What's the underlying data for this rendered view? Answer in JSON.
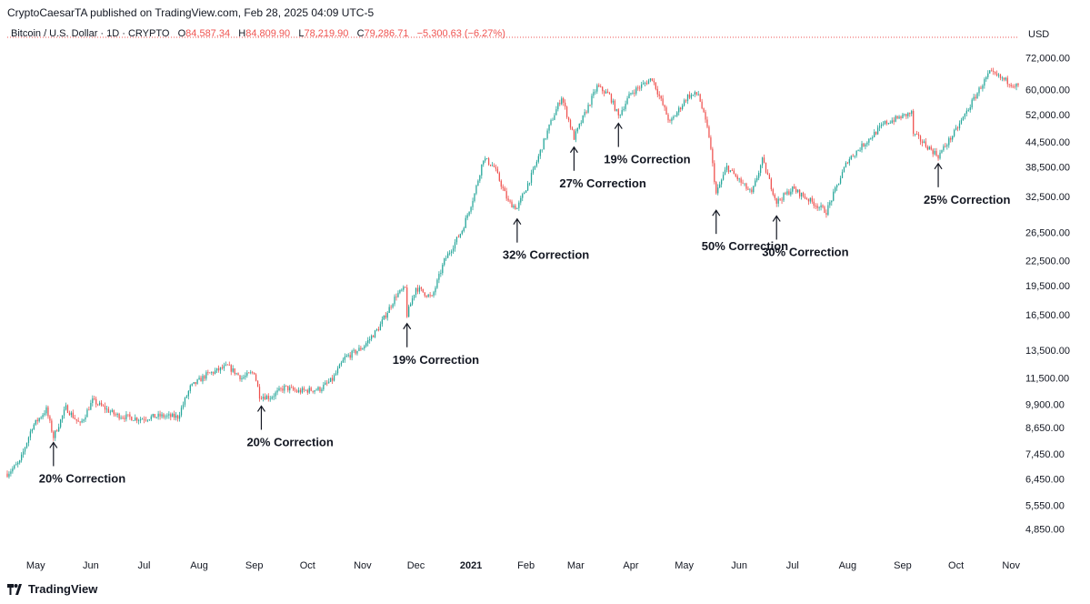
{
  "header": {
    "published": "CryptoCaesarTA published on TradingView.com, Feb 28, 2025 04:09 UTC-5"
  },
  "legend": {
    "symbol": "Bitcoin / U.S. Dollar · 1D · CRYPTO",
    "o_label": "O",
    "o_value": "84,587.34",
    "h_label": "H",
    "h_value": "84,809.90",
    "l_label": "L",
    "l_value": "78,219.90",
    "c_label": "C",
    "c_value": "79,286.71",
    "change": "−5,300.63 (−6.27%)"
  },
  "currency": "USD",
  "footer": {
    "brand": "TradingView"
  },
  "colors": {
    "up": "#26a69a",
    "down": "#ef5350",
    "axis_text": "#131722",
    "last_price_line": "#ef5350"
  },
  "chart_data": {
    "type": "candlestick",
    "y_scale": "log",
    "ylim": [
      4400,
      78000
    ],
    "y_ticks": [
      "72,000.00",
      "60,000.00",
      "52,000.00",
      "44,500.00",
      "38,500.00",
      "32,500.00",
      "26,500.00",
      "22,500.00",
      "19,500.00",
      "16,500.00",
      "13,500.00",
      "11,500.00",
      "9,900.00",
      "8,650.00",
      "7,450.00",
      "6,450.00",
      "5,550.00",
      "4,850.00"
    ],
    "x_ticks": [
      {
        "label": "May",
        "date": "2020-05-01",
        "bold": false
      },
      {
        "label": "Jun",
        "date": "2020-06-01",
        "bold": false
      },
      {
        "label": "Jul",
        "date": "2020-07-01",
        "bold": false
      },
      {
        "label": "Aug",
        "date": "2020-08-01",
        "bold": false
      },
      {
        "label": "Sep",
        "date": "2020-09-01",
        "bold": false
      },
      {
        "label": "Oct",
        "date": "2020-10-01",
        "bold": false
      },
      {
        "label": "Nov",
        "date": "2020-11-01",
        "bold": false
      },
      {
        "label": "Dec",
        "date": "2020-12-01",
        "bold": false
      },
      {
        "label": "2021",
        "date": "2021-01-01",
        "bold": true
      },
      {
        "label": "Feb",
        "date": "2021-02-01",
        "bold": false
      },
      {
        "label": "Mar",
        "date": "2021-03-01",
        "bold": false
      },
      {
        "label": "Apr",
        "date": "2021-04-01",
        "bold": false
      },
      {
        "label": "May",
        "date": "2021-05-01",
        "bold": false
      },
      {
        "label": "Jun",
        "date": "2021-06-01",
        "bold": false
      },
      {
        "label": "Jul",
        "date": "2021-07-01",
        "bold": false
      },
      {
        "label": "Aug",
        "date": "2021-08-01",
        "bold": false
      },
      {
        "label": "Sep",
        "date": "2021-09-01",
        "bold": false
      },
      {
        "label": "Oct",
        "date": "2021-10-01",
        "bold": false
      },
      {
        "label": "Nov",
        "date": "2021-11-01",
        "bold": false
      }
    ],
    "x_range": [
      "2020-04-15",
      "2021-11-05"
    ],
    "price_path": [
      [
        "2020-04-15",
        6650
      ],
      [
        "2020-04-22",
        7100
      ],
      [
        "2020-04-29",
        8700
      ],
      [
        "2020-05-07",
        9600
      ],
      [
        "2020-05-11",
        8200
      ],
      [
        "2020-05-18",
        9700
      ],
      [
        "2020-05-26",
        8800
      ],
      [
        "2020-06-02",
        10100
      ],
      [
        "2020-06-15",
        9300
      ],
      [
        "2020-06-28",
        9100
      ],
      [
        "2020-07-10",
        9250
      ],
      [
        "2020-07-20",
        9200
      ],
      [
        "2020-07-27",
        10900
      ],
      [
        "2020-08-05",
        11700
      ],
      [
        "2020-08-17",
        12300
      ],
      [
        "2020-08-25",
        11500
      ],
      [
        "2020-09-01",
        11900
      ],
      [
        "2020-09-04",
        10400
      ],
      [
        "2020-09-10",
        10300
      ],
      [
        "2020-09-18",
        10900
      ],
      [
        "2020-09-25",
        10650
      ],
      [
        "2020-10-08",
        10800
      ],
      [
        "2020-10-15",
        11400
      ],
      [
        "2020-10-22",
        12900
      ],
      [
        "2020-11-01",
        13700
      ],
      [
        "2020-11-10",
        15300
      ],
      [
        "2020-11-20",
        18500
      ],
      [
        "2020-11-25",
        19200
      ],
      [
        "2020-11-26",
        16500
      ],
      [
        "2020-12-01",
        19300
      ],
      [
        "2020-12-10",
        18200
      ],
      [
        "2020-12-17",
        22500
      ],
      [
        "2020-12-27",
        26800
      ],
      [
        "2021-01-03",
        33000
      ],
      [
        "2021-01-08",
        40500
      ],
      [
        "2021-01-14",
        38500
      ],
      [
        "2021-01-22",
        31500
      ],
      [
        "2021-01-27",
        30400
      ],
      [
        "2021-02-05",
        37500
      ],
      [
        "2021-02-14",
        48500
      ],
      [
        "2021-02-21",
        57500
      ],
      [
        "2021-02-28",
        45500
      ],
      [
        "2021-03-13",
        61000
      ],
      [
        "2021-03-20",
        58000
      ],
      [
        "2021-03-25",
        51500
      ],
      [
        "2021-04-01",
        58800
      ],
      [
        "2021-04-13",
        64000
      ],
      [
        "2021-04-23",
        49500
      ],
      [
        "2021-05-03",
        57800
      ],
      [
        "2021-05-09",
        58500
      ],
      [
        "2021-05-15",
        46000
      ],
      [
        "2021-05-19",
        33000
      ],
      [
        "2021-05-25",
        38500
      ],
      [
        "2021-06-08",
        33000
      ],
      [
        "2021-06-14",
        40000
      ],
      [
        "2021-06-22",
        31500
      ],
      [
        "2021-07-01",
        34000
      ],
      [
        "2021-07-20",
        29800
      ],
      [
        "2021-08-01",
        40000
      ],
      [
        "2021-08-22",
        49500
      ],
      [
        "2021-09-06",
        52500
      ],
      [
        "2021-09-07",
        46500
      ],
      [
        "2021-09-21",
        41000
      ],
      [
        "2021-10-01",
        47500
      ],
      [
        "2021-10-15",
        61000
      ],
      [
        "2021-10-20",
        66000
      ],
      [
        "2021-11-05",
        61000
      ]
    ],
    "annotations": [
      {
        "text": "20% Correction",
        "date": "2020-05-11",
        "low": 8200
      },
      {
        "text": "20% Correction",
        "date": "2020-09-05",
        "low": 10100
      },
      {
        "text": "19% Correction",
        "date": "2020-11-26",
        "low": 16200
      },
      {
        "text": "32% Correction",
        "date": "2021-01-27",
        "low": 29500
      },
      {
        "text": "27% Correction",
        "date": "2021-02-28",
        "low": 44500
      },
      {
        "text": "19% Correction",
        "date": "2021-03-25",
        "low": 51000
      },
      {
        "text": "50% Correction",
        "date": "2021-05-19",
        "low": 31000
      },
      {
        "text": "30% Correction",
        "date": "2021-06-22",
        "low": 30000
      },
      {
        "text": "25% Correction",
        "date": "2021-09-21",
        "low": 40500
      }
    ],
    "last_close": 60500
  }
}
